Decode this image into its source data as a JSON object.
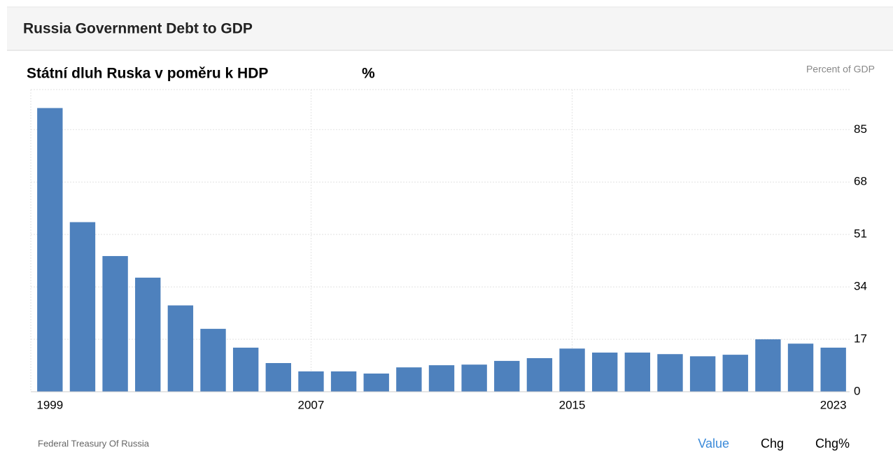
{
  "header": {
    "title": "Russia Government Debt to GDP"
  },
  "chart_data": {
    "type": "bar",
    "title": "Státní dluh Ruska v poměru k HDP",
    "unit": "%",
    "subtitle": "Percent of GDP",
    "categories": [
      "1999",
      null,
      null,
      null,
      null,
      null,
      null,
      null,
      "2007",
      null,
      null,
      null,
      null,
      null,
      null,
      null,
      "2015",
      null,
      null,
      null,
      null,
      null,
      null,
      null,
      "2023"
    ],
    "values": [
      92,
      55,
      44,
      37,
      28,
      20.4,
      14.3,
      9.3,
      6.6,
      6.6,
      5.9,
      7.9,
      8.6,
      8.8,
      10,
      10.9,
      14,
      12.7,
      12.7,
      12.2,
      11.5,
      12,
      17,
      15.6,
      14.3
    ],
    "color": "#4e81bd",
    "ylim": [
      0,
      98
    ],
    "yticks": [
      0,
      17,
      34,
      51,
      68,
      85
    ],
    "grid": true
  },
  "footer": {
    "source": "Federal Treasury Of Russia",
    "buttons": [
      "Value",
      "Chg",
      "Chg%"
    ]
  }
}
